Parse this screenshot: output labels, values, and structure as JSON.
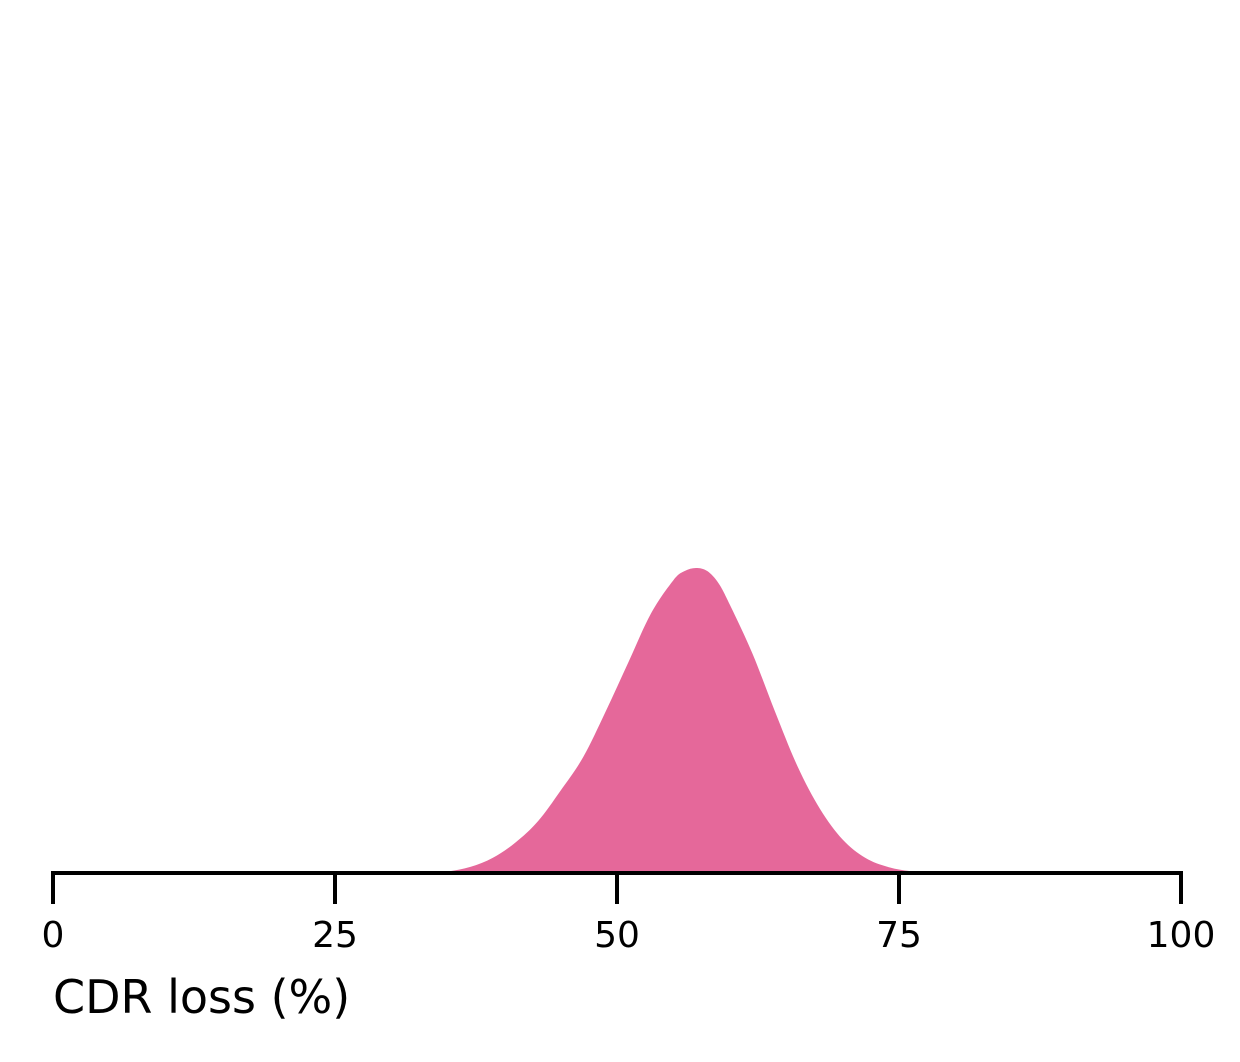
{
  "chart_data": {
    "type": "area",
    "xlabel": "CDR loss (%)",
    "ylabel": "",
    "title": "",
    "xlim": [
      0,
      100
    ],
    "xticks": [
      0,
      25,
      50,
      75,
      100
    ],
    "xtick_labels": [
      "0",
      "25",
      "50",
      "75",
      "100"
    ],
    "y_axis_shown": false,
    "grid": false,
    "series": [
      {
        "color": "#e5689a",
        "x": [
          33,
          35,
          37,
          39,
          41,
          43,
          45,
          47,
          49,
          51,
          53,
          55,
          56,
          57,
          58,
          59,
          60,
          62,
          64,
          66,
          68,
          70,
          72,
          74,
          76,
          78,
          80,
          82
        ],
        "y": [
          0.0,
          0.005,
          0.02,
          0.05,
          0.1,
          0.17,
          0.27,
          0.38,
          0.53,
          0.69,
          0.85,
          0.96,
          0.99,
          1.0,
          0.99,
          0.95,
          0.88,
          0.72,
          0.53,
          0.35,
          0.21,
          0.11,
          0.05,
          0.02,
          0.006,
          0.002,
          0.0,
          0.0
        ]
      }
    ]
  }
}
